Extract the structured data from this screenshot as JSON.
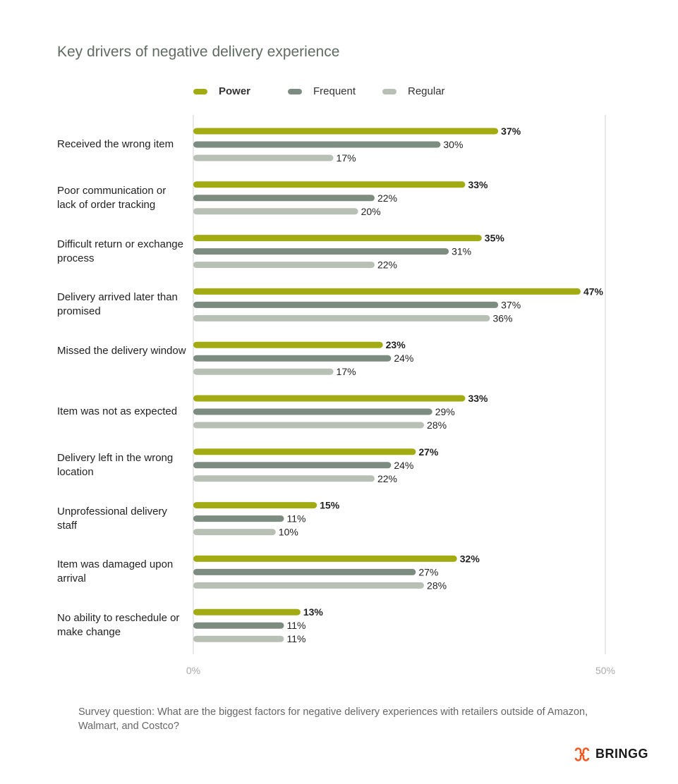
{
  "chart_data": {
    "type": "bar",
    "orientation": "horizontal",
    "title": "Key drivers of negative delivery experience",
    "categories": [
      "Received the wrong item",
      "Poor communication or lack of order tracking",
      "Difficult return or exchange process",
      "Delivery arrived later than promised",
      "Missed the delivery window",
      "Item was not as expected",
      "Delivery left in the wrong location",
      "Unprofessional delivery staff",
      "Item was damaged upon arrival",
      "No ability to reschedule or make change"
    ],
    "series": [
      {
        "name": "Power",
        "color": "#a3ab12",
        "values": [
          37,
          33,
          35,
          47,
          23,
          33,
          27,
          15,
          32,
          13
        ]
      },
      {
        "name": "Frequent",
        "color": "#7c8c80",
        "values": [
          30,
          22,
          31,
          37,
          24,
          29,
          24,
          11,
          27,
          11
        ]
      },
      {
        "name": "Regular",
        "color": "#b8c0b6",
        "values": [
          17,
          20,
          22,
          36,
          17,
          28,
          22,
          10,
          28,
          11
        ]
      }
    ],
    "xlim": [
      0,
      50
    ],
    "xticks": [
      "0%",
      "50%"
    ],
    "unit": "%",
    "legend": "top",
    "grid": false
  },
  "footnote": "Survey question: What are the biggest factors for negative delivery experiences with retailers outside of Amazon, Walmart, and Costco?",
  "logo": {
    "text": "BRINGG",
    "color": "#f05a22"
  }
}
